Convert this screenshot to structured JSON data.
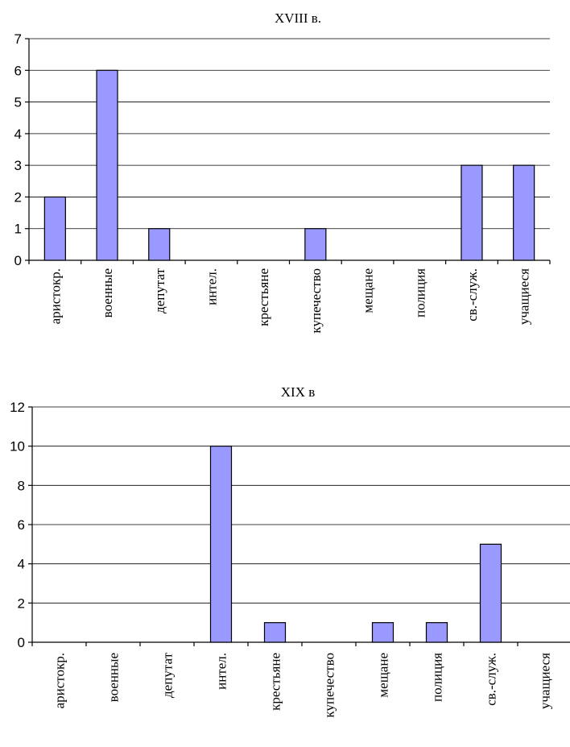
{
  "bar_color": "#9999ff",
  "chart_data": [
    {
      "type": "bar",
      "title": "XVIII в.",
      "xlabel": "",
      "ylabel": "",
      "categories": [
        "аристокр.",
        "военные",
        "депутат",
        "интел.",
        "крестьяне",
        "купечество",
        "мещане",
        "полиция",
        "св.-служ.",
        "учащиеся"
      ],
      "values": [
        2,
        6,
        1,
        0,
        0,
        1,
        0,
        0,
        3,
        3
      ],
      "ylim": [
        0,
        7
      ],
      "yticks": [
        "0",
        "1",
        "2",
        "3",
        "4",
        "5",
        "6",
        "7"
      ],
      "grid": true,
      "legend": "none"
    },
    {
      "type": "bar",
      "title": "XIX в",
      "xlabel": "",
      "ylabel": "",
      "categories": [
        "аристокр.",
        "военные",
        "депутат",
        "интел.",
        "крестьяне",
        "купечество",
        "мещане",
        "полиция",
        "св.-служ.",
        "учащиеся"
      ],
      "values": [
        0,
        0,
        0,
        10,
        1,
        0,
        1,
        1,
        5,
        0
      ],
      "ylim": [
        0,
        12
      ],
      "yticks": [
        "0",
        "2",
        "4",
        "6",
        "8",
        "10",
        "12"
      ],
      "grid": true,
      "legend": "none"
    }
  ]
}
